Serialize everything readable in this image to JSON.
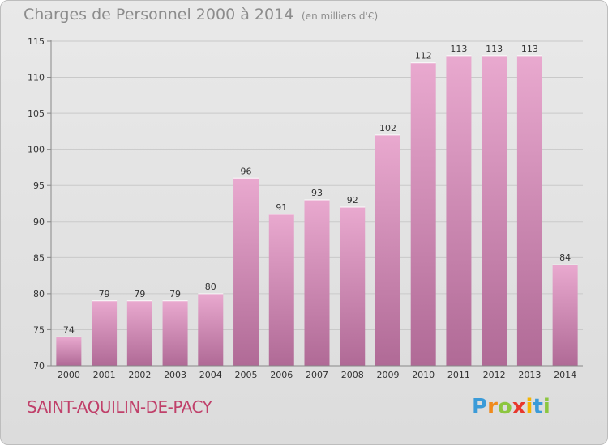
{
  "header": {
    "title": "Charges de Personnel 2000 à 2014",
    "subtitle": "(en milliers d'€)"
  },
  "footer": {
    "commune": "SAINT-AQUILIN-DE-PACY",
    "logo_text": "Proxiti"
  },
  "colors": {
    "bar_top": "#e9a9cf",
    "bar_bottom": "#b06a96",
    "commune_text": "#c0406a",
    "title_text": "#8c8c8c"
  },
  "chart_data": {
    "type": "bar",
    "title": "Charges de Personnel 2000 à 2014",
    "subtitle": "(en milliers d'€)",
    "categories": [
      "2000",
      "2001",
      "2002",
      "2003",
      "2004",
      "2005",
      "2006",
      "2007",
      "2008",
      "2009",
      "2010",
      "2011",
      "2012",
      "2013",
      "2014"
    ],
    "values": [
      74,
      79,
      79,
      79,
      80,
      96,
      91,
      93,
      92,
      102,
      112,
      113,
      113,
      113,
      84
    ],
    "ylim": [
      70,
      115
    ],
    "yticks": [
      70,
      75,
      80,
      85,
      90,
      95,
      100,
      105,
      110,
      115
    ],
    "grid": true
  }
}
